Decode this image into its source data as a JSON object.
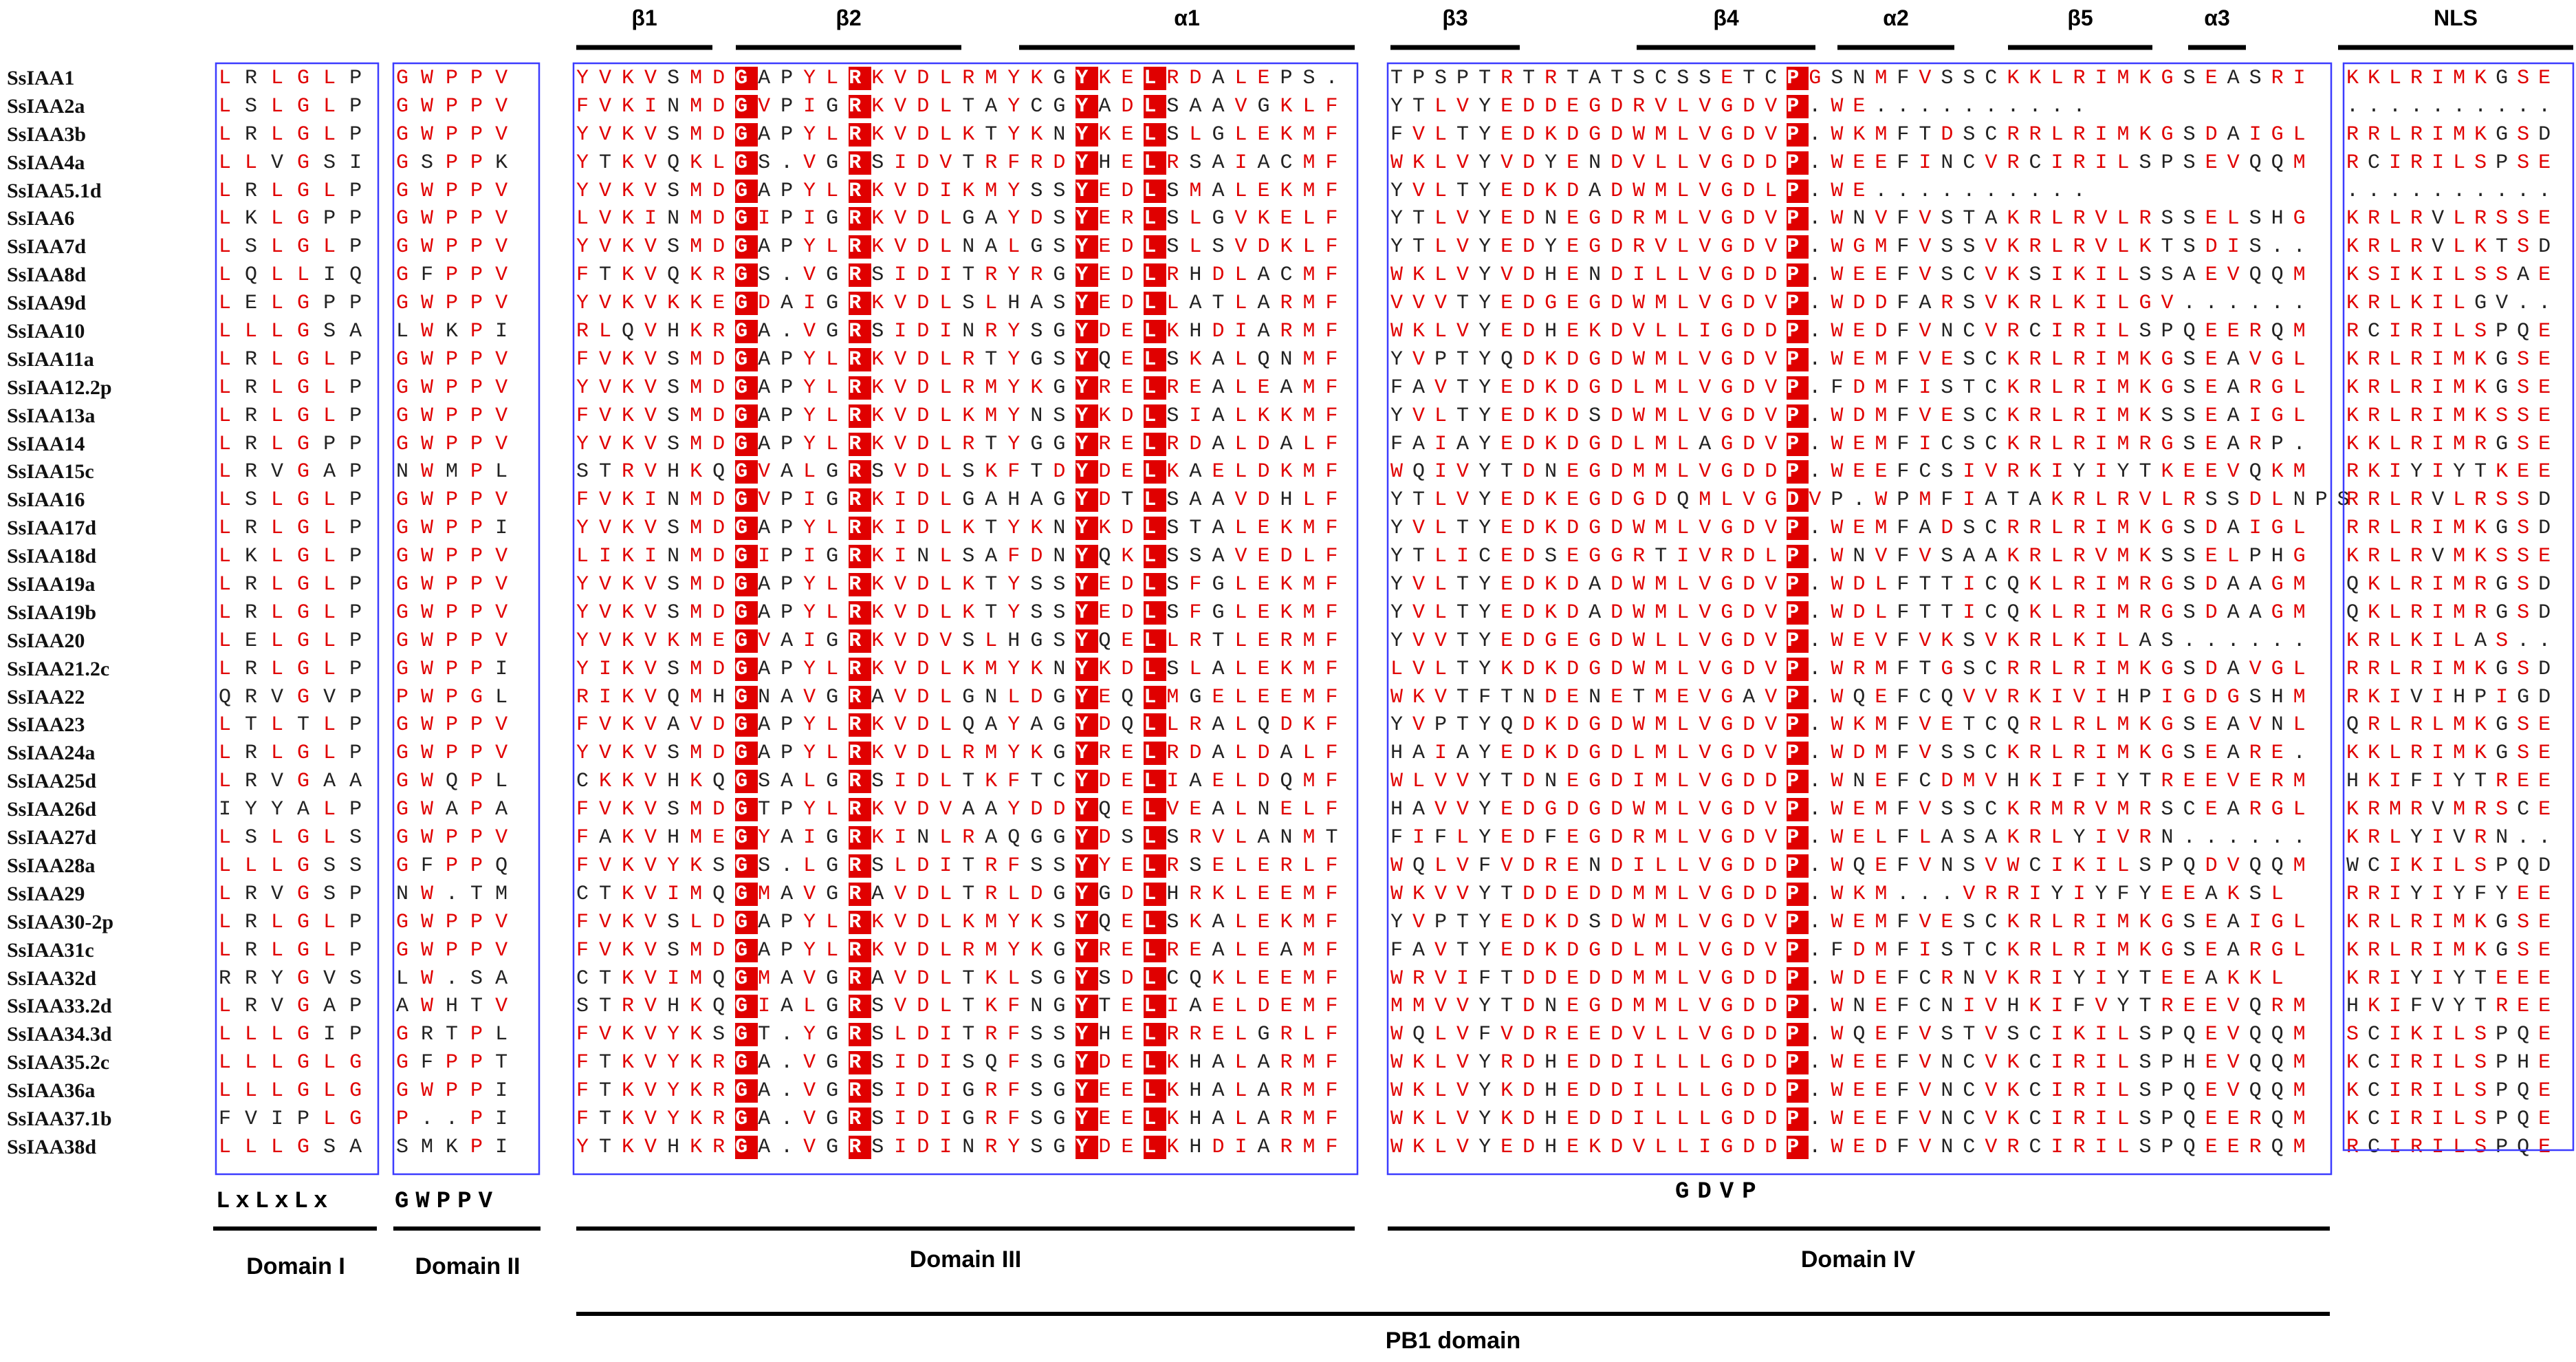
{
  "sequences": [
    "SsIAA1",
    "SsIAA2a",
    "SsIAA3b",
    "SsIAA4a",
    "SsIAA5.1d",
    "SsIAA6",
    "SsIAA7d",
    "SsIAA8d",
    "SsIAA9d",
    "SsIAA10",
    "SsIAA11a",
    "SsIAA12.2p",
    "SsIAA13a",
    "SsIAA14",
    "SsIAA15c",
    "SsIAA16",
    "SsIAA17d",
    "SsIAA18d",
    "SsIAA19a",
    "SsIAA19b",
    "SsIAA20",
    "SsIAA21.2c",
    "SsIAA22",
    "SsIAA23",
    "SsIAA24a",
    "SsIAA25d",
    "SsIAA26d",
    "SsIAA27d",
    "SsIAA28a",
    "SsIAA29",
    "SsIAA30-2p",
    "SsIAA31c",
    "SsIAA32d",
    "SsIAA33.2d",
    "SsIAA34.3d",
    "SsIAA35.2c",
    "SsIAA36a",
    "SsIAA37.1b",
    "SsIAA38d"
  ],
  "domain1_rows": [
    "LRLGLP",
    "LSLGLP",
    "LRLGLP",
    "LLVGSI",
    "LRLGLP",
    "LKLGPP",
    "LSLGLP",
    "LQLLIQ",
    "LELGPP",
    "LLLGSA",
    "LRLGLP",
    "LRLGLP",
    "LRLGLP",
    "LRLGPP",
    "LRVGAP",
    "LSLGLP",
    "LRLGLP",
    "LKLGLP",
    "LRLGLP",
    "LRLGLP",
    "LELGLP",
    "LRLGLP",
    "QRVGVP",
    "LTLTLP",
    "LRLGLP",
    "LRVGAA",
    "IYYALP",
    "LSLGLS",
    "LLLGSS",
    "LRVGSP",
    "LRLGLP",
    "LRLGLP",
    "RRYGVS",
    "LRVGAP",
    "LLLGIP",
    "LLLGLG",
    "LLLGLG",
    "FVIPLG",
    "LLLGSA"
  ],
  "domain2_rows": [
    "GWPPV",
    "GWPPV",
    "GWPPV",
    "GSPPK",
    "GWPPV",
    "GWPPV",
    "GWPPV",
    "GFPPV",
    "GWPPV",
    "LWKPI",
    "GWPPV",
    "GWPPV",
    "GWPPV",
    "GWPPV",
    "NWMPL",
    "GWPPV",
    "GWPPI",
    "GWPPV",
    "GWPPV",
    "GWPPV",
    "GWPPV",
    "GWPPI",
    "PWPGL",
    "GWPPV",
    "GWPPV",
    "GWQPL",
    "GWAPA",
    "GWPPV",
    "GFPPQ",
    "NW.TM",
    "GWPPV",
    "GWPPV",
    "LW.SA",
    "AWHTV",
    "GRTPL",
    "GFPPT",
    "GWPPI",
    "P..PI",
    "SMKPI"
  ],
  "domain3_rows": [
    "YVKVSMDGAPYLRKVDLRMYKGYKELRDALEPS.",
    "FVKINMDGVPIGRKVDLTAYCGYADLSAAVGKLF",
    "YVKVSMDGAPYLRKVDLKTYKNYKELSLGLEKMF",
    "YTKVQKLGS.VGRSIDVTRFRDYHELRSAIACMF",
    "YVKVSMDGAPYLRKVDIKMYSSYEDLSMALEKMF",
    "LVKINMDGIPIGRKVDLGAYDSYERLSLGVKELF",
    "YVKVSMDGAPYLRKVDLNALGSYEDLSLSVDKLF",
    "FTKVQKRGS.VGRSIDITRYRGYEDLRHDLACMF",
    "YVKVKKEGDAIGRKVDLSLHASYEDLLATLARMF",
    "RLQVHKRGA.VGRSIDINRYSGYDELKHDIARMF",
    "FVKVSMDGAPYLRKVDLRTYGSYQELSKALQNMF",
    "YVKVSMDGAPYLRKVDLRMYKGYRELREALEAMF",
    "FVKVSMDGAPYLRKVDLKMYNSYKDLSIALKKMF",
    "YVKVSMDGAPYLRKVDLRTYGGYRELRDALDALF",
    "STRVHKQGVALGRSVDLSKFTDYDELKAELDKMF",
    "FVKINMDGVPIGRKIDLGAHAGYDTLSAAVDHLF",
    "YVKVSMDGAPYLRKIDLKTYKNYKDLSTALEKMF",
    "LIKINMDGIPIGRKINLSAFDNYQKLSSAVEDLF",
    "YVKVSMDGAPYLRKVDLKTYSSYEDLSFGLEKMF",
    "YVKVSMDGAPYLRKVDLKTYSSYEDLSFGLEKMF",
    "YVKVKMEGVAIGRKVDVSLHGSYQELLRTLERMF",
    "YIKVSMDGAPYLRKVDLKMYKNYKDLSLALEKMF",
    "RIKVQMHGNAVGRAVDLGNLDGYEQLMGELEEMF",
    "FVKVAVDGAPYLRKVDLQAYAGYDQLLRALQDKF",
    "YVKVSMDGAPYLRKVDLRMYKGYRELRDALDALF",
    "CKKVHKQGSALGRSIDLTKFTCYDELIAELDQMF",
    "FVKVSMDGTPYLRKVDVAAYDDYQELVEALNELF",
    "FAKVHMEGYAIGRKINLRAQGGYDSLSRVLANMT",
    "FVKVYKSGS.LGRSLDITRFSSYYELRSELERLF",
    "CTKVIMQGMAVGRAVDLTRLDGYGDLHRKLEEMF",
    "FVKVSLDGAPYLRKVDLKMYKSYQELSKALEKMF",
    "FVKVSMDGAPYLRKVDLRMYKGYRELREALEAMF",
    "CTKVIMQGMAVGRAVDLTKLSGYSDLCQKLEEMF",
    "STRVHKQGIALGRSVDLTKFNGYTELIAELDEMF",
    "FVKVYKSGT.YGRSLDITRFSSYHELRRELGRLF",
    "FTKVYKRGA.VGRSIDISQFSGYDELKHALARMF",
    "FTKVYKRGA.VGRSIDIGRFSGYEELKHALARMF",
    "FTKVYKRGA.VGRSIDIGRFSGYEELKHALARMF",
    "YTKVHKRGA.VGRSIDINRYSGYDELKHDIARMF"
  ],
  "domain4_rows": [
    "TPSPTRTRTATSCSSETCPGSNMFVSSCKKLRIMKGSEASRI",
    "YTLVYEDDEGDRVLVGDVP.WE..........",
    "FVLTYEDKDGDWMLVGDVP.WKMFTDSCRRLRIMKGSDAIGL",
    "WKLVYVDYENDVLLVGDDP.WEEFINCVRCIRILSPSEVQQM",
    "YVLTYEDKDADWMLVGDLP.WE..........",
    "YTLVYEDNEGDRMLVGDVP.WNVFVSTAKRLRVLRSSELSHG",
    "YTLVYEDYEGDRVLVGDVP.WGMFVSSVKRLRVLKTSDIS..",
    "WKLVYVDHENDILLVGDDP.WEEFVSCVKSIKILSSAEVQQM",
    "VVVTYEDGEGDWMLVGDVP.WDDFARSVKRLKILGV......",
    "WKLVYEDHEKDVLLIGDDP.WEDFVNCVRCIRILSPQEERQM",
    "YVPTYQDKDGDWMLVGDVP.WEMFVESCKRLRIMKGSEAVGL",
    "FAVTYEDKDGDLMLVGDVP.FDMFISTCKRLRIMKGSEARGL",
    "YVLTYEDKDSDWMLVGDVP.WDMFVESCKRLRIMKSSEAIGL",
    "FAIAYEDKDGDLMLAGDVP.WEMFICSCKRLRIMRGSEARP.",
    "WQIVYTDNEGDMMLVGDDP.WEEFCSIVRKIYIYTKEEVQKM",
    "YTLVYEDKEGDGDQMLVGDVP.WPMFIATAKRLRVLRSSDLNPS",
    "YVLTYEDKDGDWMLVGDVP.WEMFADSCRRLRIMKGSDAIGL",
    "YTLICEDSEGGRTIVRDLP.WNVFVSAAKRLRVMKSSELPHG",
    "YVLTYEDKDADWMLVGDVP.WDLFTTICQKLRIMRGSDAAGM",
    "YVLTYEDKDADWMLVGDVP.WDLFTTICQKLRIMRGSDAAGM",
    "YVVTYEDGEGDWLLVGDVP.WEVFVKSVKRLKILAS......",
    "LVLTYKDKDGDWMLVGDVP.WRMFTGSCRRLRIMKGSDAVGL",
    "WKVTFTNDENETMEVGAVP.WQEFCQVVRKIVIHPIGDGSHM",
    "YVPTYQDKDGDWMLVGDVP.WKMFVETCQRLRLMKGSEAVNL",
    "HAIAYEDKDGDLMLVGDVP.WDMFVSSCKRLRIMKGSEARE.",
    "WLVVYTDNEGDIMLVGDDP.WNEFCDMVHKIFIYTREEVERM",
    "HAVVYEDGDGDWMLVGDVP.WEMFVSSCKRMRVMRSCEARGL",
    "FIFLYEDFEGDRMLVGDVP.WELFLASAKRLYIVRN......",
    "WQLVFVDRENDILLVGDDP.WQEFVNSVWCIKILSPQDVQQM",
    "WKVVYTDDEDDMMLVGDDP.WKM...VRRIYIYFYEEAKSL",
    "YVPTYEDKDSDWMLVGDVP.WEMFVESCKRLRIMKGSEAIGL",
    "FAVTYEDKDGDLMLVGDVP.FDMFISTCKRLRIMKGSEARGL",
    "WRVIFTDDEDDMMLVGDDP.WDEFCRNVKRIYIYTEEAKKL",
    "MMVVYTDNEGDMMLVGDDP.WNEFCNIVHKIFVYTREEVQRM",
    "WQLVFVDREEDVLLVGDDP.WQEFVSTVSCIKILSPQEVQQM",
    "WKLVYRDHEDDILLLGDDP.WEEFVNCVKCIRILSPHEVQQM",
    "WKLVYKDHEDDILLLGDDP.WEEFVNCVKCIRILSPQEVQQM",
    "WKLVYKDHEDDILLLGDDP.WEEFVNCVKCIRILSPQEERQM",
    "WKLVYEDHEKDVLLIGDDP.WEDFVNCVRCIRILSPQEERQM"
  ],
  "nls_rows": [
    "KKLRIMKGSE",
    "..........",
    "RRLRIMKGSD",
    "RCIRILSPSE",
    "..........",
    "KRLRVLRSSE",
    "KRLRVLKTSD",
    "KSIKILSSAE",
    "KRLKILGV..",
    "RCIRILSPQE",
    "KRLRIMKGSE",
    "KRLRIMKGSE",
    "KRLRIMKSSE",
    "KKLRIMRGSE",
    "RKIYIYTKEE",
    "RRLRVLRSSD",
    "RRLRIMKGSD",
    "KRLRVMKSSE",
    "QKLRIMRGSD",
    "QKLRIMRGSD",
    "KRLKILAS..",
    "RRLRIMKGSD",
    "RKIVIHPIGD",
    "QRLRLMKGSE",
    "KKLRIMKGSE",
    "HKIFIYTREE",
    "KRMRVMRSCE",
    "KRLYIVRN..",
    "WCIKILSPQD",
    "RRIYIYFYEE",
    "KRLRIMKGSE",
    "KRLRIMKGSE",
    "KRIYIYTEEE",
    "HKIFVYTREE",
    "SCIKILSPQE",
    "KCIRILSPHE",
    "KCIRILSPQE",
    "KCIRILSPQE",
    "RCIRILSPQE"
  ],
  "structure_labels": [
    "β1",
    "β2",
    "α1",
    "β3",
    "β4",
    "α2",
    "β5",
    "α3",
    "NLS"
  ],
  "consensus": {
    "domain1": "LxLxLx",
    "domain2": "GWPPV",
    "domain4": "GDVP"
  },
  "domain_labels": {
    "d1": "Domain I",
    "d2": "Domain II",
    "d3": "Domain III",
    "d4": "Domain IV",
    "pb1": "PB1 domain"
  },
  "colors": {
    "conserved_text": "#e00000",
    "identical_bg": "#e00000",
    "box_border": "#3c3cff",
    "plain_text": "#222222"
  }
}
